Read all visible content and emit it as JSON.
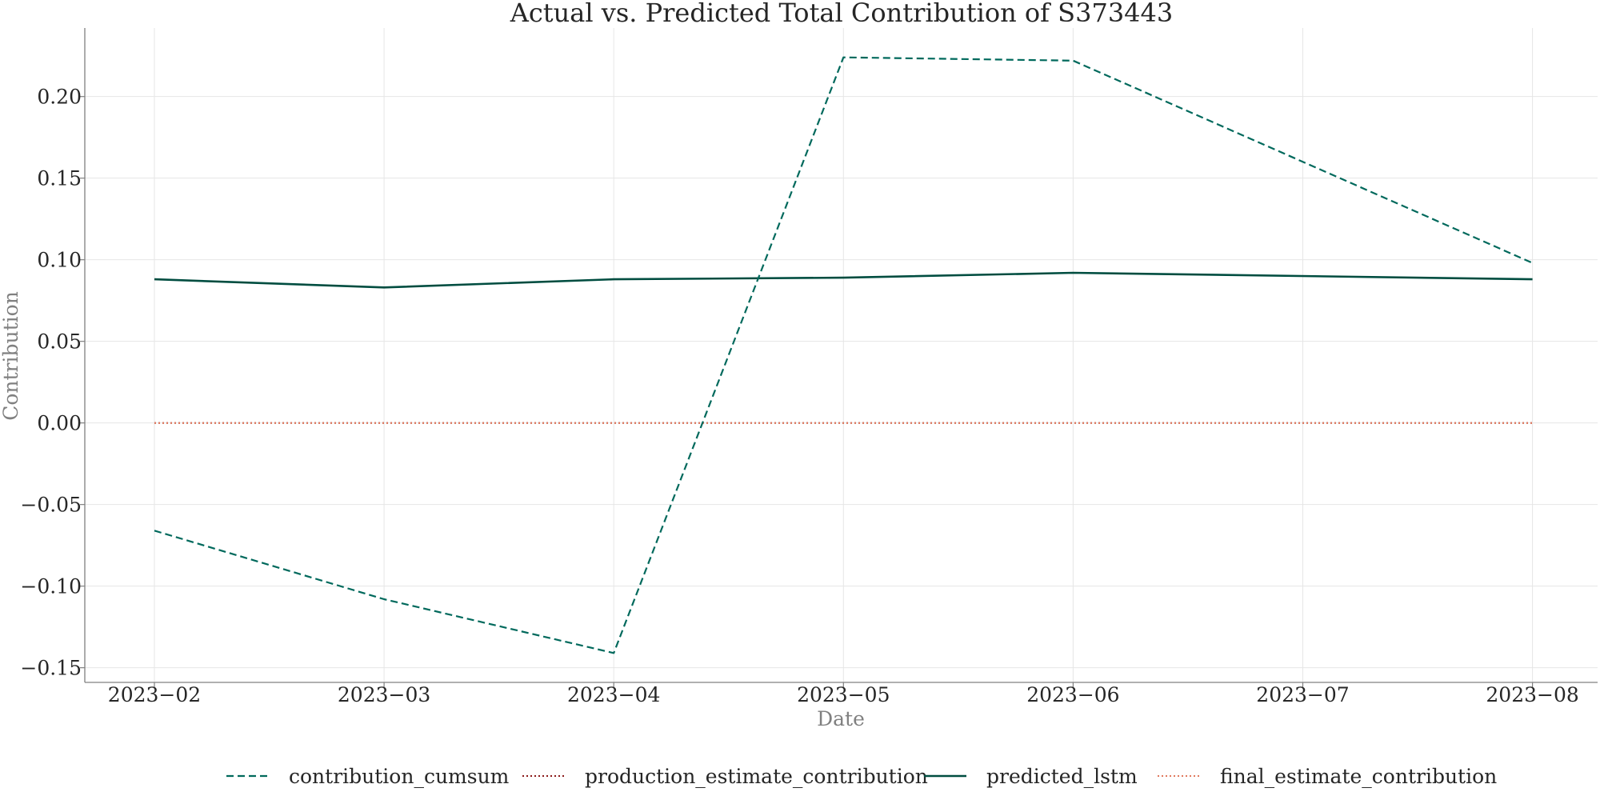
{
  "chart_data": {
    "type": "line",
    "title": "Actual vs. Predicted Total Contribution of S373443",
    "xlabel": "Date",
    "ylabel": "Contribution",
    "x": [
      "2023-02",
      "2023-03",
      "2023-04",
      "2023-05",
      "2023-06",
      "2023-07",
      "2023-08"
    ],
    "x_ticks": [
      "2023−02",
      "2023−03",
      "2023−04",
      "2023−05",
      "2023−06",
      "2023−07",
      "2023−08"
    ],
    "y_ticks": [
      "−0.15",
      "−0.10",
      "−0.05",
      "0.00",
      "0.05",
      "0.10",
      "0.15",
      "0.20"
    ],
    "y_tick_values": [
      -0.15,
      -0.1,
      -0.05,
      0.0,
      0.05,
      0.1,
      0.15,
      0.2
    ],
    "ylim": [
      -0.159,
      0.242
    ],
    "grid": true,
    "legend_placement": "bottom",
    "series": [
      {
        "name": "contribution_cumsum",
        "style": "dashed",
        "color": "#00695c",
        "x": [
          "2023-02",
          "2023-03",
          "2023-04",
          "2023-05",
          "2023-06",
          "2023-08"
        ],
        "values": [
          -0.066,
          -0.108,
          -0.141,
          0.224,
          0.222,
          0.098
        ]
      },
      {
        "name": "production_estimate_contribution",
        "style": "dotted",
        "color": "#8b1a1a",
        "x": [
          "2023-02",
          "2023-03",
          "2023-04",
          "2023-05",
          "2023-06",
          "2023-08"
        ],
        "values": [
          0.0,
          0.0,
          0.0,
          0.0,
          0.0,
          0.0
        ]
      },
      {
        "name": "predicted_lstm",
        "style": "solid",
        "color": "#004d40",
        "x": [
          "2023-02",
          "2023-03",
          "2023-04",
          "2023-05",
          "2023-06",
          "2023-08"
        ],
        "values": [
          0.088,
          0.083,
          0.088,
          0.089,
          0.092,
          0.088
        ]
      },
      {
        "name": "final_estimate_contribution",
        "style": "dotted",
        "color": "#e07a5f",
        "x": [
          "2023-02",
          "2023-03",
          "2023-04",
          "2023-05",
          "2023-06",
          "2023-08"
        ],
        "values": [
          0.0,
          0.0,
          0.0,
          0.0,
          0.0,
          0.0
        ]
      }
    ]
  }
}
